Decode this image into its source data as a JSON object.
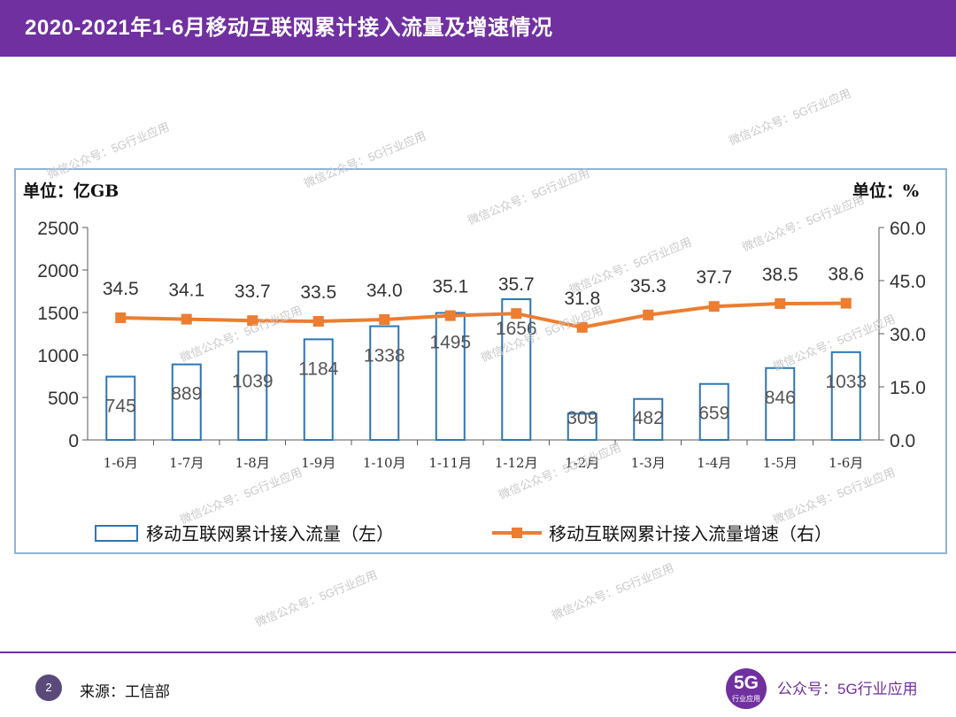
{
  "header": {
    "title": "2020-2021年1-6月移动互联网累计接入流量及增速情况"
  },
  "footer": {
    "page_number": "2",
    "source": "来源：工信部",
    "logo_big": "5G",
    "logo_small": "行业应用",
    "account": "公众号：5G行业应用"
  },
  "watermark": "微信公众号：5G行业应用",
  "colors": {
    "header": "#7030a0",
    "bar_stroke": "#2e75b6",
    "line": "#ed7d31",
    "frame": "#8fb4d9"
  },
  "chart_data": {
    "type": "bar+line",
    "categories": [
      "1-6月",
      "1-7月",
      "1-8月",
      "1-9月",
      "1-10月",
      "1-11月",
      "1-12月",
      "1-2月",
      "1-3月",
      "1-4月",
      "1-5月",
      "1-6月"
    ],
    "left_unit": "单位：亿GB",
    "right_unit": "单位：%",
    "left_ylim": [
      0,
      2500
    ],
    "left_ticks": [
      "0",
      "500",
      "1000",
      "1500",
      "2000",
      "2500"
    ],
    "right_ylim": [
      0,
      60
    ],
    "right_ticks": [
      "0.0",
      "15.0",
      "30.0",
      "45.0",
      "60.0"
    ],
    "series": [
      {
        "name": "移动互联网累计接入流量（左）",
        "type": "bar",
        "axis": "left",
        "values": [
          745,
          889,
          1039,
          1184,
          1338,
          1495,
          1656,
          309,
          482,
          659,
          846,
          1033
        ]
      },
      {
        "name": "移动互联网累计接入流量增速（右）",
        "type": "line",
        "axis": "right",
        "values": [
          34.5,
          34.1,
          33.7,
          33.5,
          34.0,
          35.1,
          35.7,
          31.8,
          35.3,
          37.7,
          38.5,
          38.6
        ]
      }
    ]
  }
}
